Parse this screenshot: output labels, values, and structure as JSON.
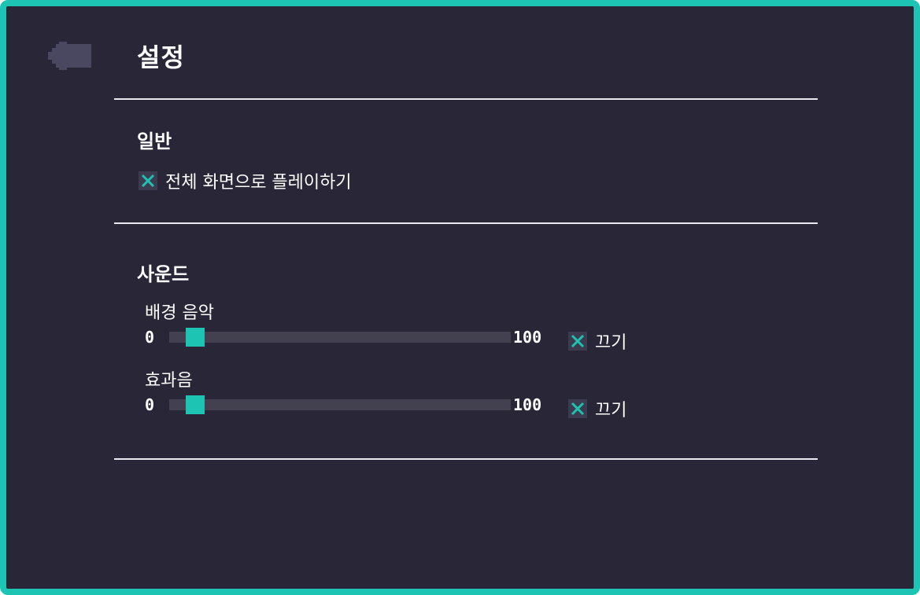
{
  "header": {
    "title": "설정",
    "back_icon": "arrow-left-icon"
  },
  "general": {
    "heading": "일반",
    "fullscreen": {
      "label": "전체 화면으로 플레이하기",
      "checked": true
    }
  },
  "sound": {
    "heading": "사운드",
    "bgm": {
      "label": "배경 음악",
      "min": "0",
      "max": "100",
      "value": 5,
      "mute_label": "끄기",
      "muted": true
    },
    "sfx": {
      "label": "효과음",
      "min": "0",
      "max": "100",
      "value": 5,
      "mute_label": "끄기",
      "muted": true
    }
  },
  "colors": {
    "background": "#282637",
    "border": "#1dc3b3",
    "accent": "#1dc3b3",
    "track": "#43414f",
    "checkbox_bg": "#3d3b4f",
    "divider": "#e9e9ee"
  }
}
